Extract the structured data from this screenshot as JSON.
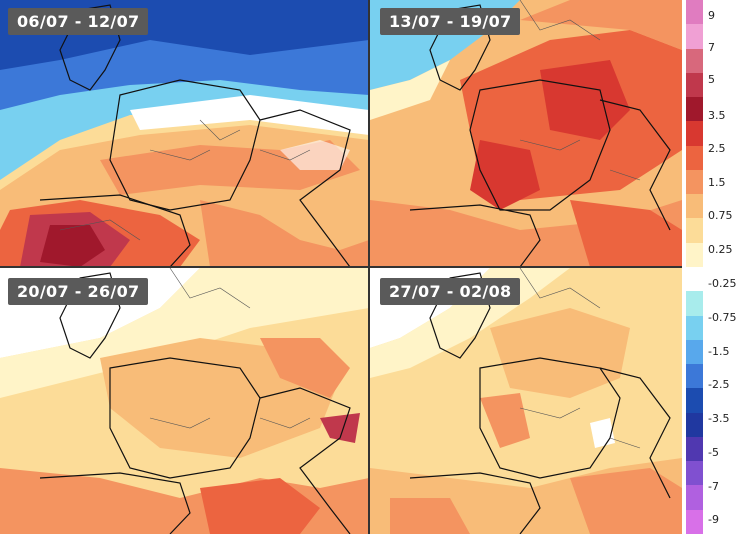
{
  "panels": [
    {
      "id": "tl",
      "label": "06/07 - 12/07"
    },
    {
      "id": "tr",
      "label": "13/07 - 19/07"
    },
    {
      "id": "bl",
      "label": "20/07 - 26/07"
    },
    {
      "id": "br",
      "label": "27/07 - 02/08"
    }
  ],
  "legend": {
    "colors": [
      "#e07cc0",
      "#f0a0d4",
      "#d8687c",
      "#c0384c",
      "#a0182c",
      "#d83830",
      "#ec6440",
      "#f49460",
      "#f8bc78",
      "#fcdc98",
      "#fff4c8",
      "#ffffff",
      "#a8ecec",
      "#78d0f0",
      "#58a8ec",
      "#3c78d8",
      "#1c4cb0",
      "#2038a0",
      "#5038b0",
      "#8050d0",
      "#b060e0",
      "#d870e8"
    ],
    "ticks": [
      "9",
      "7",
      "5",
      "3.5",
      "2.5",
      "1.5",
      "0.75",
      "0.25",
      "-0.25",
      "-0.75",
      "-1.5",
      "-2.5",
      "-3.5",
      "-5",
      "-7",
      "-9"
    ]
  }
}
